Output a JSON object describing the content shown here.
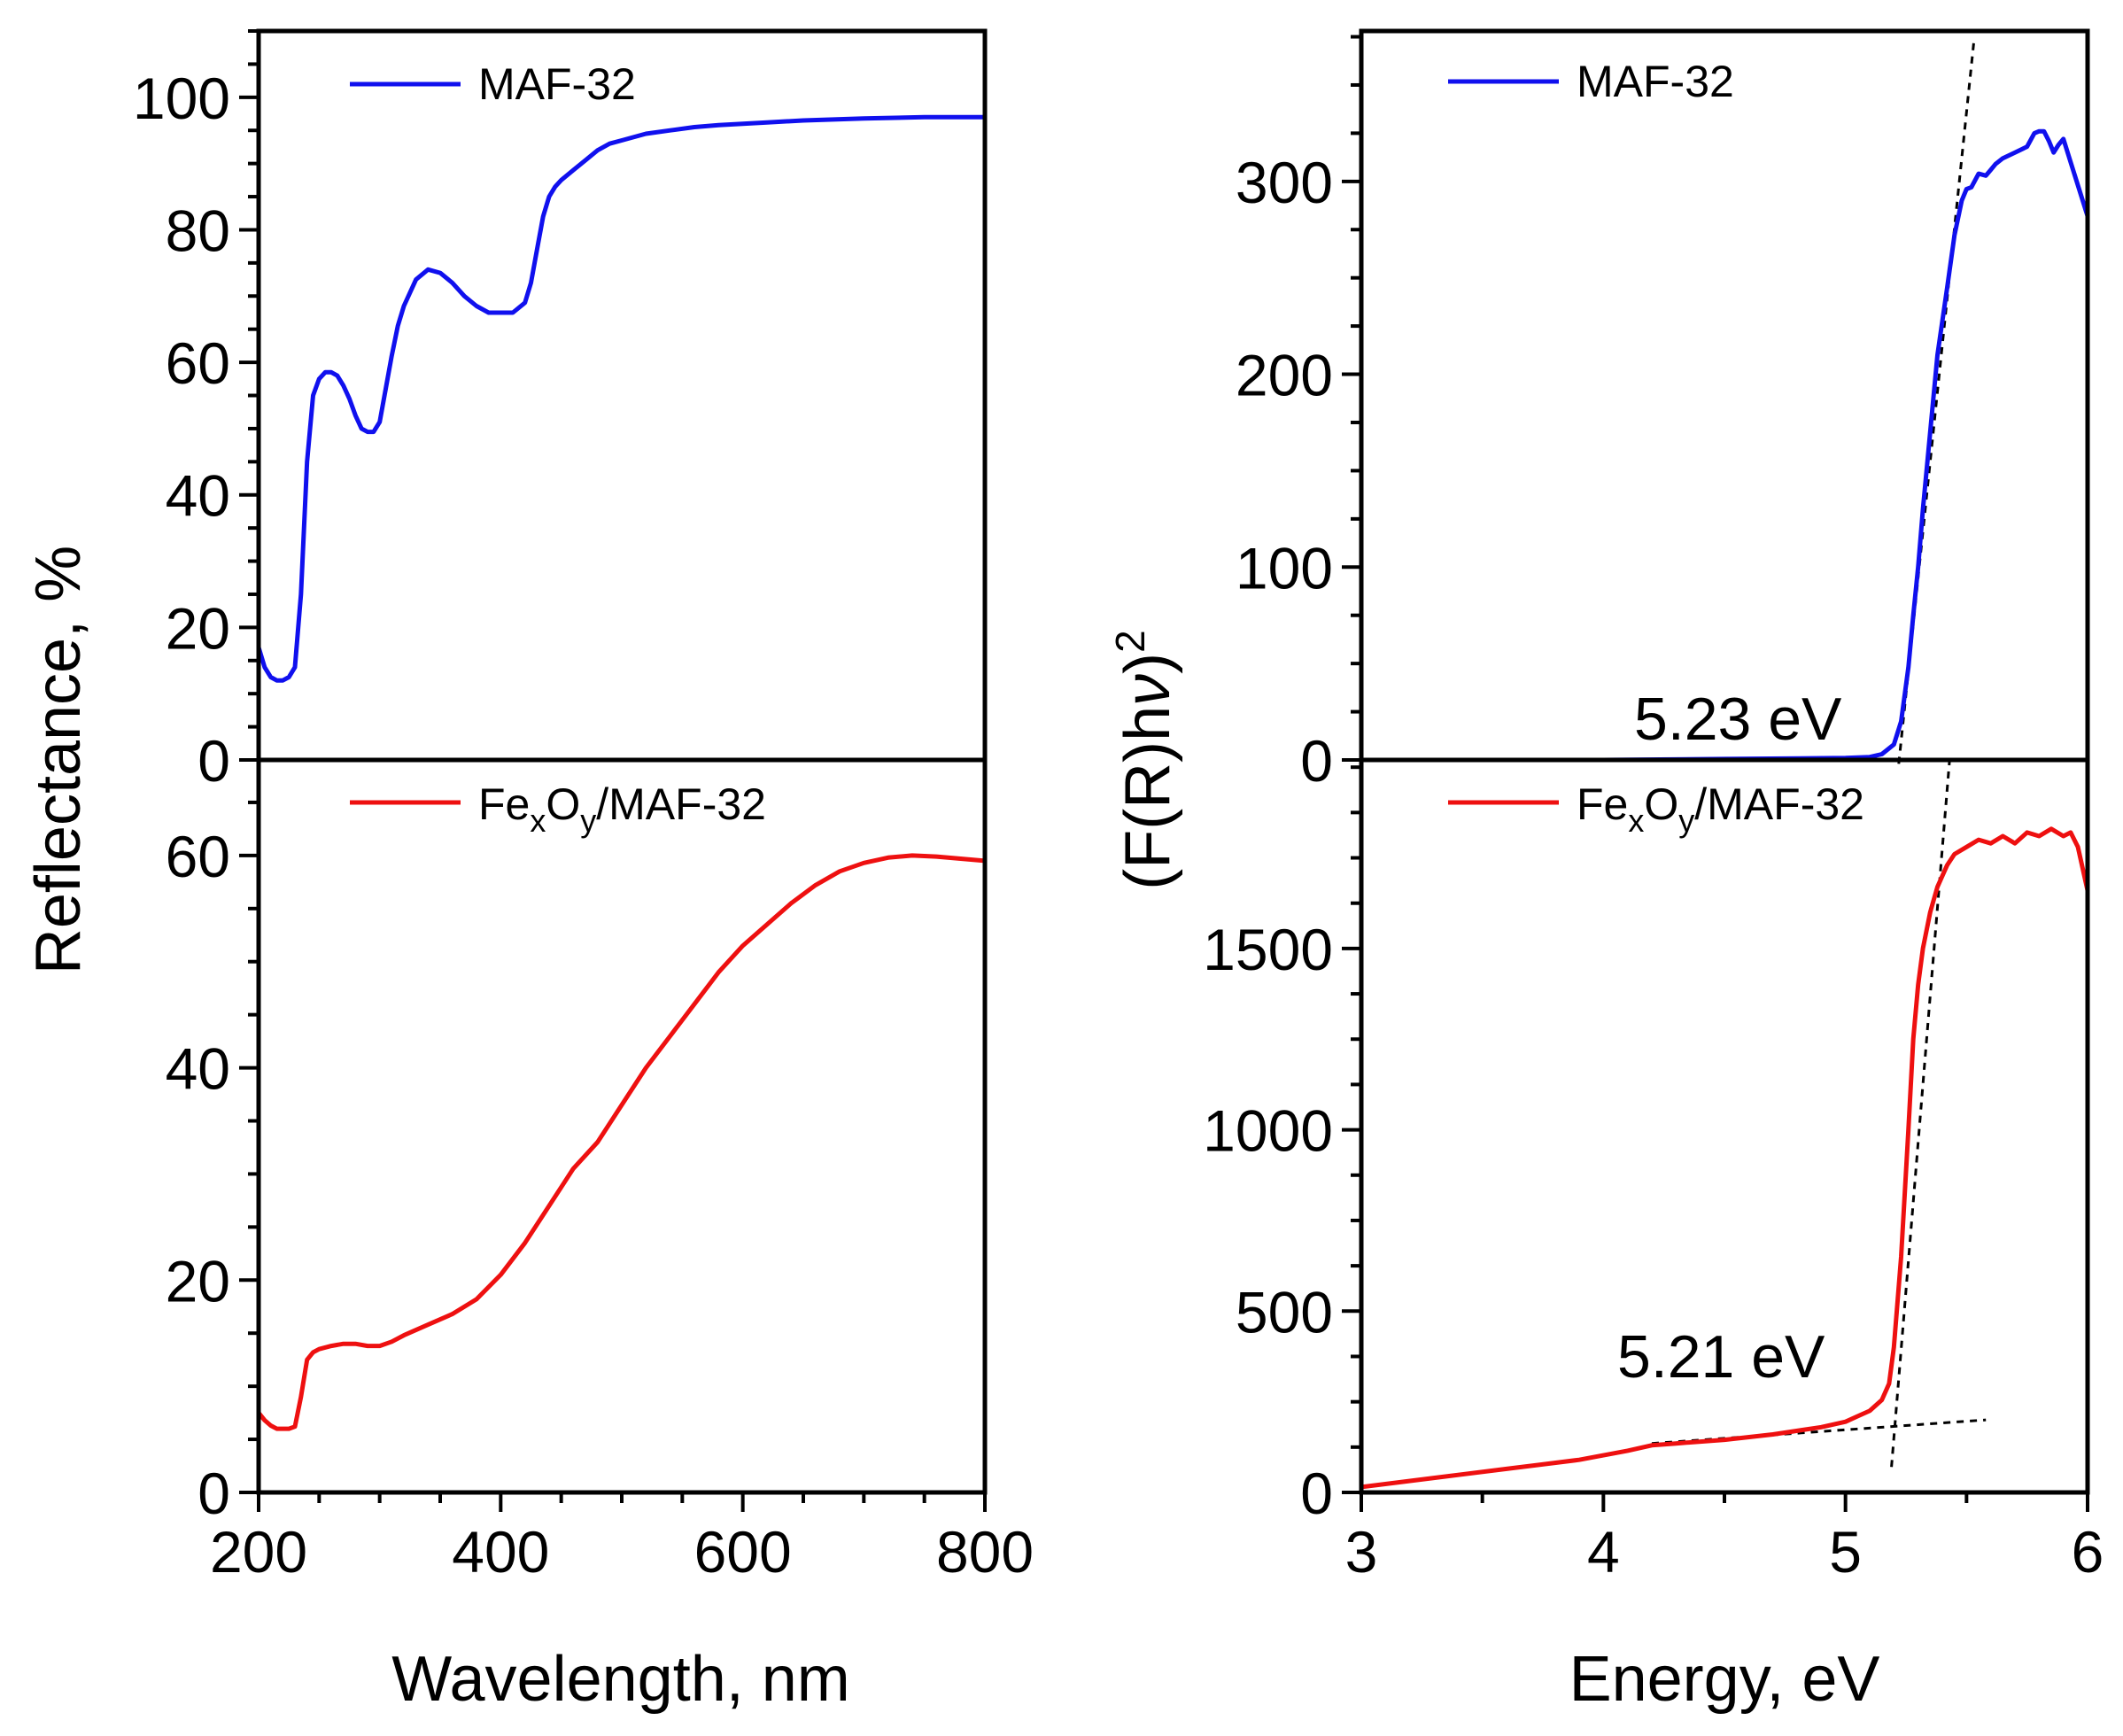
{
  "colors": {
    "maf32": "#1010ee",
    "fexoy": "#ee1010",
    "axis": "#000000",
    "fit": "#000000"
  },
  "left_panels": {
    "xlabel": "Wavelength, nm",
    "ylabel": "Reflectance, %"
  },
  "right_panels": {
    "xlabel": "Energy, eV",
    "ylabel_main": "(F(R)h",
    "ylabel_nu": "ν",
    "ylabel_close": ")",
    "ylabel_sup": "2"
  },
  "legend": {
    "maf32": "MAF-32",
    "fexoy_fe": "Fe",
    "fexoy_x": "x",
    "fexoy_o": "O",
    "fexoy_y": "y",
    "fexoy_rest": "/MAF-32"
  },
  "annotations": {
    "bandgap_maf32": "5.23 eV",
    "bandgap_fexoy": "5.21 eV"
  },
  "chart_data": [
    {
      "id": "top-left",
      "type": "line",
      "title": "",
      "xlabel": "Wavelength, nm",
      "ylabel": "Reflectance, %",
      "xlim": [
        200,
        800
      ],
      "ylim": [
        0,
        110
      ],
      "xticks": [
        200,
        400,
        600,
        800
      ],
      "yticks": [
        0,
        20,
        40,
        60,
        80,
        100
      ],
      "series": [
        {
          "name": "MAF-32",
          "x": [
            200,
            205,
            210,
            215,
            220,
            225,
            230,
            235,
            240,
            245,
            250,
            255,
            260,
            265,
            270,
            275,
            280,
            285,
            290,
            295,
            300,
            305,
            310,
            315,
            320,
            330,
            340,
            350,
            360,
            370,
            380,
            390,
            400,
            410,
            420,
            425,
            430,
            435,
            440,
            445,
            450,
            460,
            470,
            480,
            490,
            500,
            520,
            540,
            560,
            580,
            600,
            620,
            650,
            700,
            750,
            800
          ],
          "y": [
            17,
            14,
            12.5,
            12,
            12,
            12.5,
            14,
            25,
            45,
            55,
            57.5,
            58.5,
            58.5,
            58,
            56.5,
            54.5,
            52,
            50,
            49.5,
            49.5,
            51,
            56,
            61,
            65.5,
            68.5,
            72.5,
            74,
            73.5,
            72,
            70,
            68.5,
            67.5,
            67.5,
            67.5,
            69,
            72,
            77,
            82,
            85,
            86.5,
            87.5,
            89,
            90.5,
            92,
            93,
            93.5,
            94.5,
            95,
            95.5,
            95.8,
            96,
            96.2,
            96.5,
            96.8,
            97,
            97
          ]
        }
      ]
    },
    {
      "id": "bottom-left",
      "type": "line",
      "title": "",
      "xlabel": "Wavelength, nm",
      "ylabel": "Reflectance, %",
      "xlim": [
        200,
        800
      ],
      "ylim": [
        0,
        69
      ],
      "xticks": [
        200,
        400,
        600,
        800
      ],
      "yticks": [
        0,
        20,
        40,
        60
      ],
      "series": [
        {
          "name": "FexOy/MAF-32",
          "x": [
            200,
            205,
            210,
            215,
            220,
            225,
            230,
            235,
            240,
            245,
            250,
            260,
            270,
            280,
            290,
            300,
            310,
            320,
            340,
            360,
            380,
            400,
            420,
            440,
            460,
            480,
            500,
            520,
            540,
            560,
            580,
            600,
            620,
            640,
            660,
            680,
            700,
            720,
            740,
            760,
            780,
            800
          ],
          "y": [
            7.5,
            6.8,
            6.3,
            6,
            6,
            6,
            6.2,
            9,
            12.5,
            13.2,
            13.5,
            13.8,
            14,
            14,
            13.8,
            13.8,
            14.2,
            14.8,
            15.8,
            16.8,
            18.2,
            20.5,
            23.5,
            27,
            30.5,
            33,
            36.5,
            40,
            43,
            46,
            49,
            51.5,
            53.5,
            55.5,
            57.2,
            58.5,
            59.3,
            59.8,
            60,
            59.9,
            59.7,
            59.5
          ]
        }
      ]
    },
    {
      "id": "top-right",
      "type": "line",
      "title": "",
      "xlabel": "Energy, eV",
      "ylabel": "(F(R)hν)^2",
      "xlim": [
        3,
        6
      ],
      "ylim": [
        0,
        378
      ],
      "xticks": [
        3,
        4,
        5,
        6
      ],
      "yticks": [
        0,
        100,
        200,
        300
      ],
      "series": [
        {
          "name": "MAF-32",
          "x": [
            3,
            4,
            4.5,
            5,
            5.1,
            5.15,
            5.2,
            5.23,
            5.26,
            5.28,
            5.3,
            5.32,
            5.35,
            5.38,
            5.42,
            5.45,
            5.48,
            5.5,
            5.52,
            5.55,
            5.58,
            5.6,
            5.62,
            5.65,
            5.7,
            5.75,
            5.78,
            5.8,
            5.82,
            5.84,
            5.86,
            5.88,
            5.9,
            5.93,
            5.96,
            6
          ],
          "y": [
            0,
            0,
            0.5,
            1,
            1.5,
            3,
            8,
            20,
            48,
            75,
            100,
            130,
            170,
            210,
            245,
            272,
            290,
            296,
            297,
            304,
            303,
            306,
            309,
            312,
            315,
            318,
            325,
            326,
            326,
            321,
            315,
            319,
            322,
            310,
            298,
            282
          ]
        },
        {
          "name": "tangent fit",
          "x": [
            5.22,
            5.53
          ],
          "y": [
            -2,
            372
          ]
        }
      ]
    },
    {
      "id": "bottom-right",
      "type": "line",
      "title": "",
      "xlabel": "Energy, eV",
      "ylabel": "(F(R)hν)^2",
      "xlim": [
        3,
        6
      ],
      "ylim": [
        0,
        2020
      ],
      "xticks": [
        3,
        4,
        5,
        6
      ],
      "yticks": [
        0,
        500,
        1000,
        1500
      ],
      "series": [
        {
          "name": "FexOy/MAF-32",
          "x": [
            3,
            3.3,
            3.6,
            3.9,
            4.1,
            4.2,
            4.3,
            4.5,
            4.7,
            4.9,
            5,
            5.05,
            5.1,
            5.15,
            5.18,
            5.2,
            5.23,
            5.26,
            5.28,
            5.3,
            5.32,
            5.35,
            5.38,
            5.4,
            5.42,
            5.45,
            5.5,
            5.55,
            5.6,
            5.65,
            5.7,
            5.75,
            5.8,
            5.85,
            5.9,
            5.93,
            5.96,
            6
          ],
          "y": [
            15,
            40,
            65,
            90,
            115,
            130,
            135,
            145,
            160,
            180,
            195,
            210,
            225,
            255,
            300,
            400,
            650,
            1000,
            1250,
            1400,
            1500,
            1600,
            1670,
            1700,
            1730,
            1760,
            1780,
            1800,
            1790,
            1810,
            1790,
            1820,
            1810,
            1830,
            1810,
            1820,
            1780,
            1660
          ]
        },
        {
          "name": "tangent fit",
          "x": [
            5.19,
            5.43
          ],
          "y": [
            70,
            2020
          ]
        },
        {
          "name": "baseline fit",
          "x": [
            4.2,
            5.58
          ],
          "y": [
            135,
            200
          ]
        }
      ]
    }
  ]
}
